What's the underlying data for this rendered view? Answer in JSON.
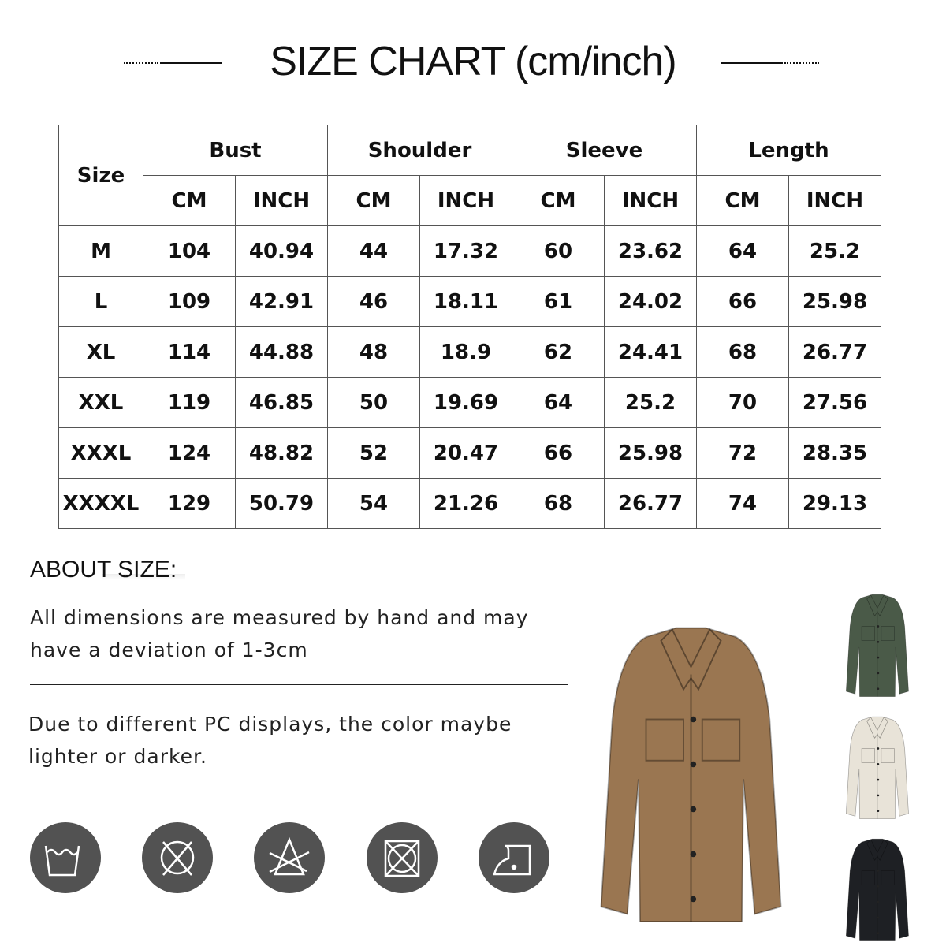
{
  "title": "SIZE CHART (cm/inch)",
  "table": {
    "size_header": "Size",
    "groups": [
      "Bust",
      "Shoulder",
      "Sleeve",
      "Length"
    ],
    "units": [
      "CM",
      "INCH",
      "CM",
      "INCH",
      "CM",
      "INCH",
      "CM",
      "INCH"
    ],
    "rows": [
      [
        "M",
        "104",
        "40.94",
        "44",
        "17.32",
        "60",
        "23.62",
        "64",
        "25.2"
      ],
      [
        "L",
        "109",
        "42.91",
        "46",
        "18.11",
        "61",
        "24.02",
        "66",
        "25.98"
      ],
      [
        "XL",
        "114",
        "44.88",
        "48",
        "18.9",
        "62",
        "24.41",
        "68",
        "26.77"
      ],
      [
        "XXL",
        "119",
        "46.85",
        "50",
        "19.69",
        "64",
        "25.2",
        "70",
        "27.56"
      ],
      [
        "XXXL",
        "124",
        "48.82",
        "52",
        "20.47",
        "66",
        "25.98",
        "72",
        "28.35"
      ],
      [
        "XXXXL",
        "129",
        "50.79",
        "54",
        "21.26",
        "68",
        "26.77",
        "74",
        "29.13"
      ]
    ]
  },
  "about": {
    "heading": "ABOUT SIZE:",
    "note1": "All dimensions are measured by hand and may have a deviation of 1-3cm",
    "note2": "Due to different PC displays, the color maybe lighter or darker."
  },
  "care_icons": [
    "hand-wash-icon",
    "do-not-dry-clean-icon",
    "do-not-bleach-icon",
    "do-not-tumble-dry-icon",
    "iron-low-icon"
  ],
  "jacket_colors": {
    "main": "#9a7651",
    "green": "#4a5a48",
    "cream": "#e8e3d8",
    "black": "#1e2024"
  }
}
